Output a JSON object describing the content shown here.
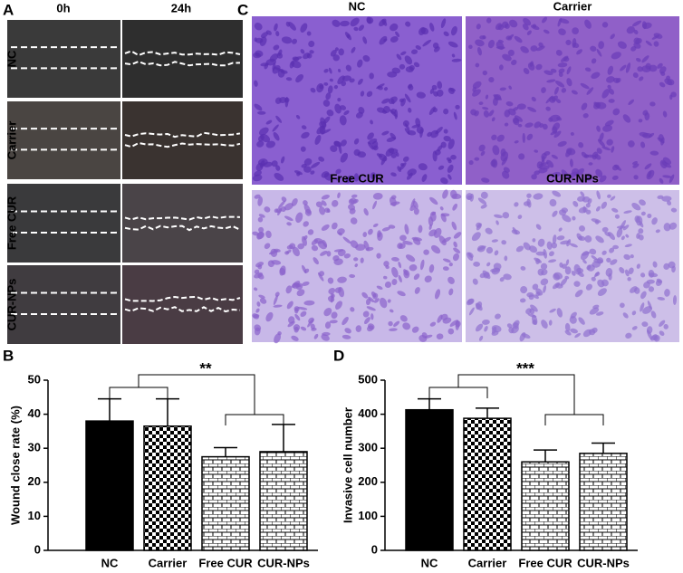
{
  "panels": {
    "a": {
      "letter": "A",
      "columns": [
        "0h",
        "24h"
      ],
      "rows": [
        "NC",
        "Carrier",
        "Free CUR",
        "CUR-NPs"
      ]
    },
    "c": {
      "letter": "C",
      "labels": [
        "NC",
        "Carrier",
        "Free CUR",
        "CUR-NPs"
      ]
    }
  },
  "chart_data": [
    {
      "type": "bar",
      "letter": "B",
      "ylabel": "Wound close rate (%)",
      "annotation": "**",
      "categories": [
        "NC",
        "Carrier",
        "Free CUR",
        "CUR-NPs"
      ],
      "values": [
        38,
        36.5,
        27.5,
        29
      ],
      "errors": [
        6.5,
        8,
        2.7,
        8
      ],
      "patterns": [
        "solid",
        "checker",
        "brick",
        "brick"
      ],
      "color": "#000000",
      "ylim": [
        0,
        50
      ],
      "yticks": [
        0,
        10,
        20,
        30,
        40,
        50
      ]
    },
    {
      "type": "bar",
      "letter": "D",
      "ylabel": "Invasive cell number",
      "annotation": "***",
      "categories": [
        "NC",
        "Carrier",
        "Free CUR",
        "CUR-NPs"
      ],
      "values": [
        413,
        388,
        260,
        285
      ],
      "errors": [
        32,
        30,
        35,
        30
      ],
      "patterns": [
        "solid",
        "checker",
        "brick",
        "brick"
      ],
      "color": "#000000",
      "ylim": [
        0,
        500
      ],
      "yticks": [
        0,
        100,
        200,
        300,
        400,
        500
      ]
    }
  ]
}
